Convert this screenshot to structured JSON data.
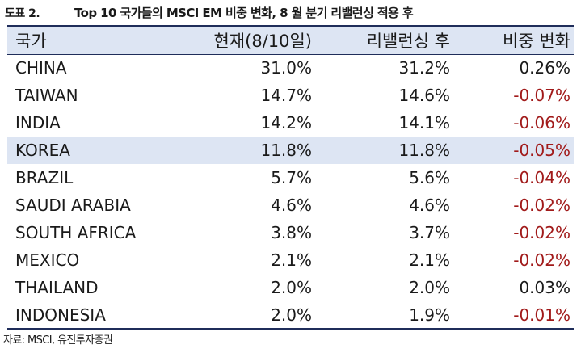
{
  "figure": {
    "number": "도표 2.",
    "title": "Top 10 국가들의 MSCI EM 비중 변화, 8 월 분기 리밸런싱 적용 후"
  },
  "table": {
    "headers": [
      "국가",
      "현재(8/10일)",
      "리밸런싱 후",
      "비중 변화"
    ],
    "rows": [
      {
        "country": "CHINA",
        "current": "31.0%",
        "after": "31.2%",
        "change": "0.26%",
        "negative": false,
        "highlight": false
      },
      {
        "country": "TAIWAN",
        "current": "14.7%",
        "after": "14.6%",
        "change": "-0.07%",
        "negative": true,
        "highlight": false
      },
      {
        "country": "INDIA",
        "current": "14.2%",
        "after": "14.1%",
        "change": "-0.06%",
        "negative": true,
        "highlight": false
      },
      {
        "country": "KOREA",
        "current": "11.8%",
        "after": "11.8%",
        "change": "-0.05%",
        "negative": true,
        "highlight": true
      },
      {
        "country": "BRAZIL",
        "current": "5.7%",
        "after": "5.6%",
        "change": "-0.04%",
        "negative": true,
        "highlight": false
      },
      {
        "country": "SAUDI ARABIA",
        "current": "4.6%",
        "after": "4.6%",
        "change": "-0.02%",
        "negative": true,
        "highlight": false
      },
      {
        "country": "SOUTH AFRICA",
        "current": "3.8%",
        "after": "3.7%",
        "change": "-0.02%",
        "negative": true,
        "highlight": false
      },
      {
        "country": "MEXICO",
        "current": "2.1%",
        "after": "2.1%",
        "change": "-0.02%",
        "negative": true,
        "highlight": false
      },
      {
        "country": "THAILAND",
        "current": "2.0%",
        "after": "2.0%",
        "change": "0.03%",
        "negative": false,
        "highlight": false
      },
      {
        "country": "INDONESIA",
        "current": "2.0%",
        "after": "1.9%",
        "change": "-0.01%",
        "negative": true,
        "highlight": false
      }
    ]
  },
  "source": "자료: MSCI, 유진투자증권",
  "colors": {
    "header_bg": "#dde5f3",
    "highlight_bg": "#dde5f3",
    "rule": "#1f2d5a",
    "negative": "#a11a1a"
  }
}
